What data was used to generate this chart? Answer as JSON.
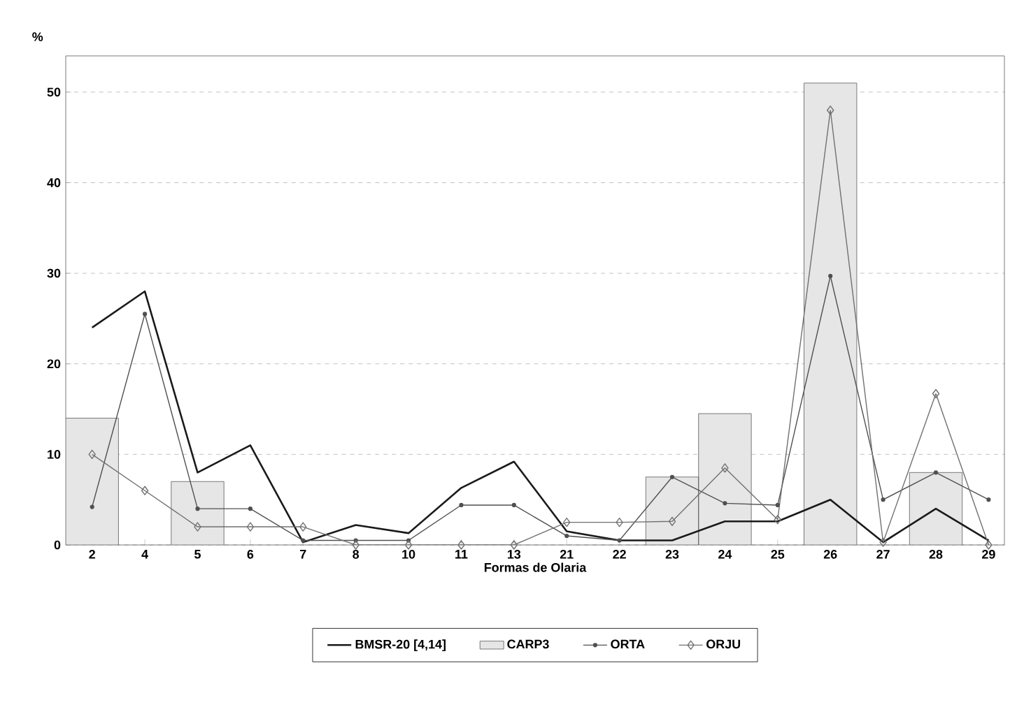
{
  "chart_data": {
    "type": "line",
    "xlabel": "Formas de Olaria",
    "ylabel": "%",
    "categories": [
      "2",
      "4",
      "5",
      "6",
      "7",
      "8",
      "10",
      "11",
      "13",
      "21",
      "22",
      "23",
      "24",
      "25",
      "26",
      "27",
      "28",
      "29"
    ],
    "series": [
      {
        "name": "BMSR-20 [4,14]",
        "color": "#1a1a1a",
        "marker": "none",
        "values": [
          24,
          28,
          8,
          11,
          0.3,
          2.2,
          1.3,
          6.3,
          9.2,
          1.5,
          0.5,
          0.5,
          2.6,
          2.6,
          5,
          0.3,
          4,
          0.5
        ]
      },
      {
        "name": "CARP3",
        "type": "bar",
        "color": "#e6e6e6",
        "values": [
          14,
          null,
          7,
          null,
          null,
          null,
          null,
          null,
          null,
          null,
          null,
          7.5,
          14.5,
          null,
          51,
          null,
          8,
          null
        ]
      },
      {
        "name": "ORTA",
        "color": "#505050",
        "marker": "circle",
        "values": [
          4.2,
          25.5,
          4,
          4,
          0.5,
          0.5,
          0.5,
          4.4,
          4.4,
          1,
          0.5,
          7.5,
          4.6,
          4.4,
          29.7,
          5,
          8,
          5
        ]
      },
      {
        "name": "ORJU",
        "color": "#707070",
        "marker": "diamond",
        "values": [
          10,
          6,
          2,
          2,
          2,
          0,
          0,
          0,
          0,
          2.5,
          2.5,
          2.6,
          8.5,
          2.8,
          48,
          0.3,
          16.7,
          0
        ]
      }
    ],
    "ylim": [
      0,
      54
    ],
    "yticks": [
      0,
      10,
      20,
      30,
      40,
      50
    ],
    "grid": "y",
    "legend": "bottom"
  }
}
